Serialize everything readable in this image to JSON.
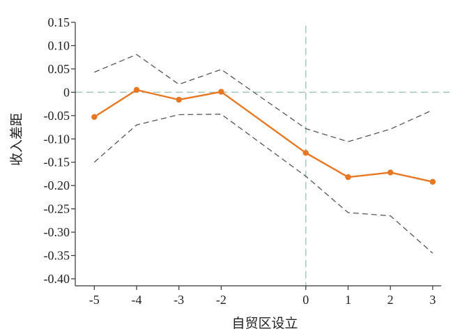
{
  "chart_data": {
    "type": "line",
    "xlabel": "自贸区设立",
    "ylabel": "收入差距",
    "x": [
      -5,
      -4,
      -3,
      -2,
      0,
      1,
      2,
      3
    ],
    "xticks": [
      "-5",
      "-4",
      "-3",
      "-2",
      "0",
      "1",
      "2",
      "3"
    ],
    "yticks": [
      "0.15",
      "0.10",
      "0.05",
      "0",
      "-0.05",
      "-0.10",
      "-0.15",
      "-0.20",
      "-0.25",
      "-0.30",
      "-0.35",
      "-0.40"
    ],
    "ytick_values": [
      0.15,
      0.1,
      0.05,
      0,
      -0.05,
      -0.1,
      -0.15,
      -0.2,
      -0.25,
      -0.3,
      -0.35,
      -0.4
    ],
    "xlim": [
      -5.45,
      3.2
    ],
    "ylim": [
      -0.415,
      0.15
    ],
    "series": [
      {
        "role": "estimate",
        "values": [
          -0.053,
          0.005,
          -0.016,
          0.001,
          -0.13,
          -0.182,
          -0.172,
          -0.192
        ],
        "color": "#E87722",
        "style": "solid",
        "markers": true
      },
      {
        "role": "upper",
        "values": [
          0.043,
          0.081,
          0.017,
          0.049,
          -0.078,
          -0.106,
          -0.079,
          -0.038
        ],
        "color": "#555555",
        "style": "dashed",
        "markers": false
      },
      {
        "role": "lower",
        "values": [
          -0.15,
          -0.07,
          -0.048,
          -0.047,
          -0.18,
          -0.258,
          -0.265,
          -0.345
        ],
        "color": "#555555",
        "style": "dashed",
        "markers": false
      }
    ],
    "reference_lines": [
      {
        "axis": "y",
        "value": 0,
        "color": "#9FC5B8",
        "style": "dashed"
      },
      {
        "axis": "x",
        "value": 0,
        "color": "#9FC5B8",
        "style": "dashed"
      }
    ],
    "grid": false,
    "legend": "none"
  }
}
